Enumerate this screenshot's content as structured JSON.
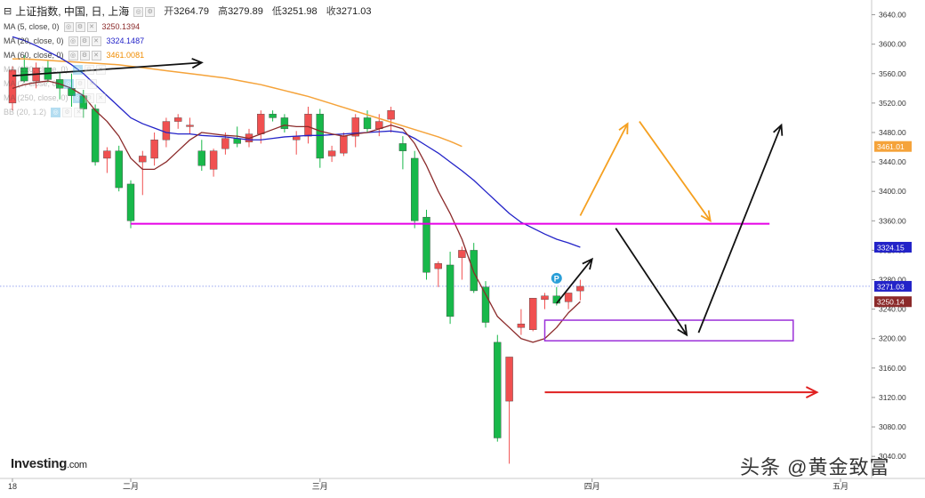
{
  "header": {
    "instrument": "上证指数, 中国, 日, 上海",
    "ohlc": [
      {
        "label": "开",
        "value": "3264.79"
      },
      {
        "label": "高",
        "value": "3279.89"
      },
      {
        "label": "低",
        "value": "3251.98"
      },
      {
        "label": "收",
        "value": "3271.03"
      }
    ]
  },
  "legend": [
    {
      "label": "MA (5, close, 0)",
      "value": "3250.1394",
      "color": "#8b2a2a"
    },
    {
      "label": "MA (20, close, 0)",
      "value": "3324.1487",
      "color": "#2323c8"
    },
    {
      "label": "MA (60, close, 0)",
      "value": "3461.0081",
      "color": "#f08c00"
    },
    {
      "label": "MA (120, close, 0)",
      "value": "",
      "color": "#999999"
    },
    {
      "label": "MA (?, close, 0)",
      "value": "",
      "color": "#999999"
    },
    {
      "label": "MA (250, close, 0)",
      "value": "",
      "color": "#999999"
    },
    {
      "label": "BB (20, 1.2)",
      "value": "",
      "color": "#999999"
    }
  ],
  "colors": {
    "up": "#f05050",
    "down": "#18b84a",
    "ma5": "#8b2a2a",
    "ma20": "#2323c8",
    "ma60": "#f5a33a",
    "support": "#e600e6",
    "box": "#9b30d9",
    "target": "#e02020",
    "bullish": "#f5a020",
    "path": "#111111"
  },
  "brand": {
    "name": "Investing",
    "suffix": ".com"
  },
  "watermark": "头条 @黄金致富",
  "chart_data": {
    "type": "candlestick",
    "title": "上证指数, 中国, 日, 上海",
    "ylim": [
      3010,
      3660
    ],
    "y_ticks": [
      "3640.00",
      "3600.00",
      "3560.00",
      "3520.00",
      "3480.00",
      "3440.00",
      "3400.00",
      "3360.00",
      "3320.00",
      "3280.00",
      "3240.00",
      "3200.00",
      "3160.00",
      "3120.00",
      "3080.00",
      "3040.00"
    ],
    "x_ticks": [
      {
        "label": "18",
        "index": 0
      },
      {
        "label": "二月",
        "index": 10
      },
      {
        "label": "三月",
        "index": 26
      },
      {
        "label": "四月",
        "index": 49
      },
      {
        "label": "五月",
        "index": 70
      }
    ],
    "candles": [
      [
        3520,
        3570,
        3510,
        3565
      ],
      [
        3568,
        3585,
        3548,
        3550
      ],
      [
        3550,
        3575,
        3540,
        3568
      ],
      [
        3568,
        3578,
        3548,
        3552
      ],
      [
        3552,
        3562,
        3525,
        3540
      ],
      [
        3540,
        3560,
        3515,
        3530
      ],
      [
        3530,
        3538,
        3500,
        3512
      ],
      [
        3512,
        3518,
        3435,
        3440
      ],
      [
        3445,
        3460,
        3425,
        3455
      ],
      [
        3455,
        3462,
        3400,
        3405
      ],
      [
        3410,
        3415,
        3350,
        3360
      ],
      [
        3440,
        3455,
        3395,
        3448
      ],
      [
        3445,
        3480,
        3435,
        3470
      ],
      [
        3470,
        3500,
        3460,
        3495
      ],
      [
        3495,
        3505,
        3485,
        3500
      ],
      [
        3488,
        3500,
        3478,
        3490
      ],
      [
        3455,
        3470,
        3428,
        3435
      ],
      [
        3430,
        3458,
        3420,
        3455
      ],
      [
        3458,
        3480,
        3450,
        3472
      ],
      [
        3472,
        3488,
        3460,
        3465
      ],
      [
        3467,
        3485,
        3460,
        3478
      ],
      [
        3478,
        3510,
        3465,
        3505
      ],
      [
        3505,
        3510,
        3495,
        3500
      ],
      [
        3500,
        3505,
        3480,
        3485
      ],
      [
        3470,
        3482,
        3450,
        3475
      ],
      [
        3475,
        3515,
        3465,
        3505
      ],
      [
        3505,
        3512,
        3432,
        3445
      ],
      [
        3448,
        3462,
        3440,
        3455
      ],
      [
        3452,
        3480,
        3448,
        3475
      ],
      [
        3475,
        3505,
        3460,
        3500
      ],
      [
        3500,
        3510,
        3480,
        3485
      ],
      [
        3485,
        3505,
        3475,
        3495
      ],
      [
        3498,
        3515,
        3480,
        3510
      ],
      [
        3465,
        3475,
        3430,
        3455
      ],
      [
        3445,
        3455,
        3350,
        3360
      ],
      [
        3365,
        3375,
        3280,
        3290
      ],
      [
        3295,
        3305,
        3270,
        3302
      ],
      [
        3300,
        3318,
        3220,
        3230
      ],
      [
        3310,
        3325,
        3280,
        3320
      ],
      [
        3320,
        3330,
        3262,
        3265
      ],
      [
        3270,
        3278,
        3215,
        3222
      ],
      [
        3195,
        3205,
        3060,
        3065
      ],
      [
        3115,
        3175,
        3030,
        3175
      ],
      [
        3215,
        3240,
        3205,
        3220
      ],
      [
        3212,
        3255,
        3210,
        3255
      ],
      [
        3253,
        3262,
        3240,
        3258
      ],
      [
        3258,
        3270,
        3245,
        3248
      ],
      [
        3250,
        3262,
        3240,
        3262
      ],
      [
        3264.79,
        3279.89,
        3251.98,
        3271.03
      ]
    ],
    "ma5": [
      3540,
      3545,
      3548,
      3550,
      3546,
      3540,
      3530,
      3510,
      3495,
      3475,
      3445,
      3430,
      3430,
      3440,
      3455,
      3470,
      3480,
      3478,
      3476,
      3475,
      3472,
      3478,
      3484,
      3490,
      3488,
      3488,
      3482,
      3478,
      3475,
      3478,
      3480,
      3485,
      3490,
      3485,
      3465,
      3435,
      3400,
      3370,
      3335,
      3290,
      3260,
      3230,
      3215,
      3200,
      3195,
      3200,
      3215,
      3235,
      3250.14
    ],
    "ma20": [
      3610,
      3605,
      3598,
      3590,
      3582,
      3572,
      3560,
      3545,
      3530,
      3515,
      3500,
      3492,
      3486,
      3480,
      3478,
      3478,
      3476,
      3475,
      3474,
      3472,
      3470,
      3470,
      3472,
      3474,
      3475,
      3476,
      3476,
      3477,
      3478,
      3479,
      3480,
      3481,
      3482,
      3480,
      3472,
      3462,
      3452,
      3440,
      3428,
      3415,
      3400,
      3385,
      3370,
      3358,
      3350,
      3342,
      3335,
      3330,
      3324.15
    ],
    "ma60": [
      3580,
      3580,
      3579,
      3578,
      3577,
      3576,
      3575,
      3574,
      3573,
      3572,
      3570,
      3568,
      3566,
      3564,
      3562,
      3560,
      3558,
      3556,
      3554,
      3551,
      3548,
      3545,
      3541,
      3537,
      3533,
      3529,
      3524,
      3519,
      3514,
      3509,
      3504,
      3499,
      3494,
      3489,
      3484,
      3479,
      3474,
      3468,
      3461.01
    ],
    "price_labels": [
      {
        "value": 3461.01,
        "text": "3461.01",
        "color": "#f5a33a"
      },
      {
        "value": 3324.15,
        "text": "3324.15",
        "color": "#2323c8"
      },
      {
        "value": 3271.03,
        "text": "3271.03",
        "color": "#2323c8"
      },
      {
        "value": 3250.14,
        "text": "3250.14",
        "color": "#8b2a2a"
      }
    ],
    "support_line": {
      "value": 3356,
      "from": 10,
      "to": 64
    },
    "box": {
      "top": 3225,
      "bottom": 3197,
      "from": 45,
      "to": 66
    },
    "target_line": {
      "value": 3127,
      "from": 45,
      "to": 68
    },
    "arrows": [
      {
        "kind": "bullish",
        "points": [
          [
            48,
            3367
          ],
          [
            52,
            3492
          ]
        ]
      },
      {
        "kind": "bullish",
        "points": [
          [
            53,
            3495
          ],
          [
            59,
            3360
          ]
        ]
      },
      {
        "kind": "path",
        "points": [
          [
            51,
            3350
          ],
          [
            57,
            3205
          ]
        ]
      },
      {
        "kind": "path",
        "points": [
          [
            58,
            3208
          ],
          [
            65,
            3490
          ]
        ]
      },
      {
        "kind": "path",
        "points": [
          [
            46,
            3248
          ],
          [
            49,
            3308
          ]
        ]
      },
      {
        "kind": "path",
        "points": [
          [
            0,
            3557
          ],
          [
            16,
            3575
          ]
        ]
      }
    ]
  }
}
